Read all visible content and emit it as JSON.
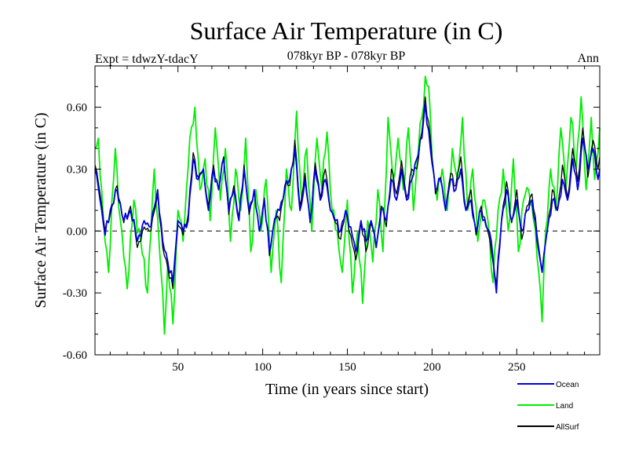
{
  "chart_data": {
    "type": "line",
    "title": "Surface Air Temperature (in C)",
    "subtitle": "078kyr BP - 078kyr BP",
    "left_label": "Expt = tdwzY-tdacY",
    "right_label": "Ann",
    "xlabel": "Time (in years since start)",
    "ylabel": "Surface Air Temperature (in C)",
    "xlim": [
      1,
      299
    ],
    "ylim": [
      -0.6,
      0.8
    ],
    "x_ticks": [
      50,
      100,
      150,
      200,
      250
    ],
    "x_tick_labels": [
      "50",
      "100",
      "150",
      "200",
      "250"
    ],
    "y_ticks": [
      -0.6,
      -0.3,
      0.0,
      0.3,
      0.6
    ],
    "y_tick_labels": [
      "-0.60",
      "-0.30",
      "0.00",
      "0.30",
      "0.60"
    ],
    "reference_line": 0,
    "series": [
      {
        "name": "Land",
        "color": "#00ee00",
        "keypoints": [
          [
            1,
            0.4
          ],
          [
            3,
            0.45
          ],
          [
            6,
            0.05
          ],
          [
            9,
            -0.2
          ],
          [
            13,
            0.4
          ],
          [
            16,
            0.05
          ],
          [
            20,
            -0.28
          ],
          [
            24,
            0.15
          ],
          [
            28,
            -0.05
          ],
          [
            32,
            -0.3
          ],
          [
            36,
            0.3
          ],
          [
            40,
            -0.2
          ],
          [
            42,
            -0.5
          ],
          [
            44,
            -0.15
          ],
          [
            47,
            -0.45
          ],
          [
            50,
            0.1
          ],
          [
            53,
            -0.05
          ],
          [
            57,
            0.45
          ],
          [
            60,
            0.6
          ],
          [
            63,
            0.2
          ],
          [
            66,
            0.35
          ],
          [
            69,
            0.05
          ],
          [
            72,
            0.5
          ],
          [
            75,
            0.15
          ],
          [
            78,
            0.4
          ],
          [
            81,
            -0.05
          ],
          [
            84,
            0.3
          ],
          [
            87,
            0.1
          ],
          [
            90,
            0.45
          ],
          [
            93,
            -0.1
          ],
          [
            96,
            0.2
          ],
          [
            99,
            0.0
          ],
          [
            102,
            0.25
          ],
          [
            105,
            -0.2
          ],
          [
            108,
            0.1
          ],
          [
            111,
            -0.25
          ],
          [
            114,
            0.3
          ],
          [
            117,
            0.1
          ],
          [
            120,
            0.58
          ],
          [
            123,
            0.15
          ],
          [
            126,
            0.4
          ],
          [
            129,
            0.0
          ],
          [
            132,
            0.45
          ],
          [
            135,
            0.2
          ],
          [
            138,
            0.48
          ],
          [
            141,
            0.1
          ],
          [
            144,
            0.0
          ],
          [
            147,
            -0.2
          ],
          [
            150,
            0.15
          ],
          [
            153,
            -0.3
          ],
          [
            156,
            0.0
          ],
          [
            159,
            -0.35
          ],
          [
            162,
            0.05
          ],
          [
            165,
            -0.15
          ],
          [
            168,
            0.2
          ],
          [
            171,
            -0.1
          ],
          [
            174,
            0.55
          ],
          [
            177,
            0.25
          ],
          [
            180,
            0.45
          ],
          [
            183,
            0.2
          ],
          [
            186,
            0.5
          ],
          [
            189,
            0.1
          ],
          [
            192,
            0.4
          ],
          [
            194,
            0.55
          ],
          [
            196,
            0.75
          ],
          [
            198,
            0.7
          ],
          [
            200,
            0.35
          ],
          [
            203,
            0.15
          ],
          [
            206,
            0.3
          ],
          [
            209,
            0.1
          ],
          [
            212,
            0.4
          ],
          [
            215,
            0.25
          ],
          [
            218,
            0.55
          ],
          [
            221,
            0.1
          ],
          [
            224,
            0.3
          ],
          [
            227,
            -0.05
          ],
          [
            230,
            0.15
          ],
          [
            233,
            0.05
          ],
          [
            236,
            -0.25
          ],
          [
            239,
            0.1
          ],
          [
            242,
            0.3
          ],
          [
            245,
            0.0
          ],
          [
            248,
            0.35
          ],
          [
            251,
            -0.1
          ],
          [
            254,
            0.15
          ],
          [
            257,
            0.2
          ],
          [
            260,
            0.05
          ],
          [
            263,
            -0.2
          ],
          [
            265,
            -0.44
          ],
          [
            267,
            0.0
          ],
          [
            270,
            0.3
          ],
          [
            273,
            0.1
          ],
          [
            276,
            0.5
          ],
          [
            279,
            0.2
          ],
          [
            282,
            0.55
          ],
          [
            285,
            0.3
          ],
          [
            288,
            0.65
          ],
          [
            291,
            0.2
          ],
          [
            294,
            0.55
          ],
          [
            296,
            0.25
          ],
          [
            299,
            0.5
          ]
        ]
      },
      {
        "name": "Ocean",
        "color": "#0000dd",
        "keypoints": [
          [
            1,
            0.3
          ],
          [
            4,
            0.15
          ],
          [
            7,
            -0.02
          ],
          [
            10,
            0.1
          ],
          [
            14,
            0.2
          ],
          [
            18,
            0.05
          ],
          [
            22,
            0.1
          ],
          [
            26,
            -0.05
          ],
          [
            30,
            0.05
          ],
          [
            34,
            0.02
          ],
          [
            38,
            0.2
          ],
          [
            41,
            -0.05
          ],
          [
            44,
            -0.15
          ],
          [
            47,
            -0.25
          ],
          [
            50,
            0.05
          ],
          [
            53,
            0.0
          ],
          [
            56,
            0.05
          ],
          [
            59,
            0.35
          ],
          [
            62,
            0.25
          ],
          [
            65,
            0.3
          ],
          [
            68,
            0.1
          ],
          [
            71,
            0.3
          ],
          [
            74,
            0.2
          ],
          [
            77,
            0.35
          ],
          [
            80,
            0.1
          ],
          [
            83,
            0.2
          ],
          [
            86,
            0.05
          ],
          [
            89,
            0.3
          ],
          [
            92,
            0.1
          ],
          [
            95,
            0.2
          ],
          [
            98,
            0.0
          ],
          [
            101,
            0.15
          ],
          [
            104,
            -0.1
          ],
          [
            107,
            0.05
          ],
          [
            110,
            0.1
          ],
          [
            113,
            0.2
          ],
          [
            116,
            0.25
          ],
          [
            119,
            0.4
          ],
          [
            122,
            0.1
          ],
          [
            125,
            0.25
          ],
          [
            128,
            0.05
          ],
          [
            131,
            0.3
          ],
          [
            134,
            0.15
          ],
          [
            137,
            0.25
          ],
          [
            140,
            0.1
          ],
          [
            143,
            0.05
          ],
          [
            146,
            0.0
          ],
          [
            149,
            0.1
          ],
          [
            152,
            0.02
          ],
          [
            155,
            -0.1
          ],
          [
            158,
            0.05
          ],
          [
            161,
            -0.05
          ],
          [
            164,
            0.05
          ],
          [
            167,
            -0.08
          ],
          [
            170,
            0.1
          ],
          [
            173,
            0.05
          ],
          [
            176,
            0.25
          ],
          [
            179,
            0.15
          ],
          [
            182,
            0.3
          ],
          [
            185,
            0.15
          ],
          [
            188,
            0.25
          ],
          [
            191,
            0.35
          ],
          [
            194,
            0.45
          ],
          [
            196,
            0.62
          ],
          [
            199,
            0.4
          ],
          [
            202,
            0.2
          ],
          [
            205,
            0.25
          ],
          [
            208,
            0.1
          ],
          [
            211,
            0.25
          ],
          [
            214,
            0.2
          ],
          [
            217,
            0.3
          ],
          [
            220,
            0.1
          ],
          [
            223,
            0.15
          ],
          [
            226,
            0.0
          ],
          [
            229,
            0.1
          ],
          [
            232,
            0.02
          ],
          [
            235,
            -0.05
          ],
          [
            238,
            -0.3
          ],
          [
            241,
            0.05
          ],
          [
            244,
            0.2
          ],
          [
            247,
            0.05
          ],
          [
            250,
            0.15
          ],
          [
            253,
            0.0
          ],
          [
            256,
            0.1
          ],
          [
            259,
            0.15
          ],
          [
            262,
            -0.05
          ],
          [
            265,
            -0.2
          ],
          [
            268,
            0.0
          ],
          [
            271,
            0.15
          ],
          [
            274,
            0.1
          ],
          [
            277,
            0.25
          ],
          [
            280,
            0.15
          ],
          [
            283,
            0.35
          ],
          [
            286,
            0.2
          ],
          [
            289,
            0.45
          ],
          [
            292,
            0.3
          ],
          [
            295,
            0.4
          ],
          [
            298,
            0.25
          ],
          [
            299,
            0.3
          ]
        ]
      },
      {
        "name": "AllSurf",
        "color": "#000000",
        "keypoints": [
          [
            1,
            0.32
          ],
          [
            4,
            0.18
          ],
          [
            7,
            0.0
          ],
          [
            10,
            0.08
          ],
          [
            14,
            0.22
          ],
          [
            18,
            0.04
          ],
          [
            22,
            0.12
          ],
          [
            26,
            -0.08
          ],
          [
            30,
            0.02
          ],
          [
            34,
            0.0
          ],
          [
            38,
            0.18
          ],
          [
            41,
            -0.08
          ],
          [
            44,
            -0.18
          ],
          [
            47,
            -0.28
          ],
          [
            50,
            0.03
          ],
          [
            53,
            -0.02
          ],
          [
            56,
            0.08
          ],
          [
            59,
            0.38
          ],
          [
            62,
            0.26
          ],
          [
            65,
            0.3
          ],
          [
            68,
            0.12
          ],
          [
            71,
            0.32
          ],
          [
            74,
            0.2
          ],
          [
            77,
            0.36
          ],
          [
            80,
            0.08
          ],
          [
            83,
            0.22
          ],
          [
            86,
            0.06
          ],
          [
            89,
            0.32
          ],
          [
            92,
            0.08
          ],
          [
            95,
            0.2
          ],
          [
            98,
            0.0
          ],
          [
            101,
            0.16
          ],
          [
            104,
            -0.12
          ],
          [
            107,
            0.06
          ],
          [
            110,
            0.05
          ],
          [
            113,
            0.22
          ],
          [
            116,
            0.22
          ],
          [
            119,
            0.44
          ],
          [
            122,
            0.12
          ],
          [
            125,
            0.28
          ],
          [
            128,
            0.04
          ],
          [
            131,
            0.33
          ],
          [
            134,
            0.16
          ],
          [
            137,
            0.3
          ],
          [
            140,
            0.1
          ],
          [
            143,
            0.04
          ],
          [
            146,
            -0.04
          ],
          [
            149,
            0.1
          ],
          [
            152,
            -0.02
          ],
          [
            155,
            -0.14
          ],
          [
            158,
            0.04
          ],
          [
            161,
            -0.1
          ],
          [
            164,
            0.04
          ],
          [
            167,
            -0.08
          ],
          [
            170,
            0.12
          ],
          [
            173,
            0.02
          ],
          [
            176,
            0.3
          ],
          [
            179,
            0.18
          ],
          [
            182,
            0.34
          ],
          [
            185,
            0.16
          ],
          [
            188,
            0.3
          ],
          [
            191,
            0.3
          ],
          [
            194,
            0.48
          ],
          [
            196,
            0.65
          ],
          [
            199,
            0.45
          ],
          [
            202,
            0.18
          ],
          [
            205,
            0.26
          ],
          [
            208,
            0.1
          ],
          [
            211,
            0.28
          ],
          [
            214,
            0.22
          ],
          [
            217,
            0.36
          ],
          [
            220,
            0.1
          ],
          [
            223,
            0.2
          ],
          [
            226,
            -0.02
          ],
          [
            229,
            0.12
          ],
          [
            232,
            0.03
          ],
          [
            235,
            -0.1
          ],
          [
            238,
            -0.26
          ],
          [
            241,
            0.06
          ],
          [
            244,
            0.24
          ],
          [
            247,
            0.04
          ],
          [
            250,
            0.2
          ],
          [
            253,
            -0.04
          ],
          [
            256,
            0.12
          ],
          [
            259,
            0.18
          ],
          [
            262,
            -0.02
          ],
          [
            265,
            -0.2
          ],
          [
            268,
            0.0
          ],
          [
            271,
            0.2
          ],
          [
            274,
            0.1
          ],
          [
            277,
            0.32
          ],
          [
            280,
            0.16
          ],
          [
            283,
            0.4
          ],
          [
            286,
            0.24
          ],
          [
            289,
            0.5
          ],
          [
            292,
            0.26
          ],
          [
            295,
            0.44
          ],
          [
            298,
            0.3
          ],
          [
            299,
            0.36
          ]
        ]
      }
    ]
  }
}
